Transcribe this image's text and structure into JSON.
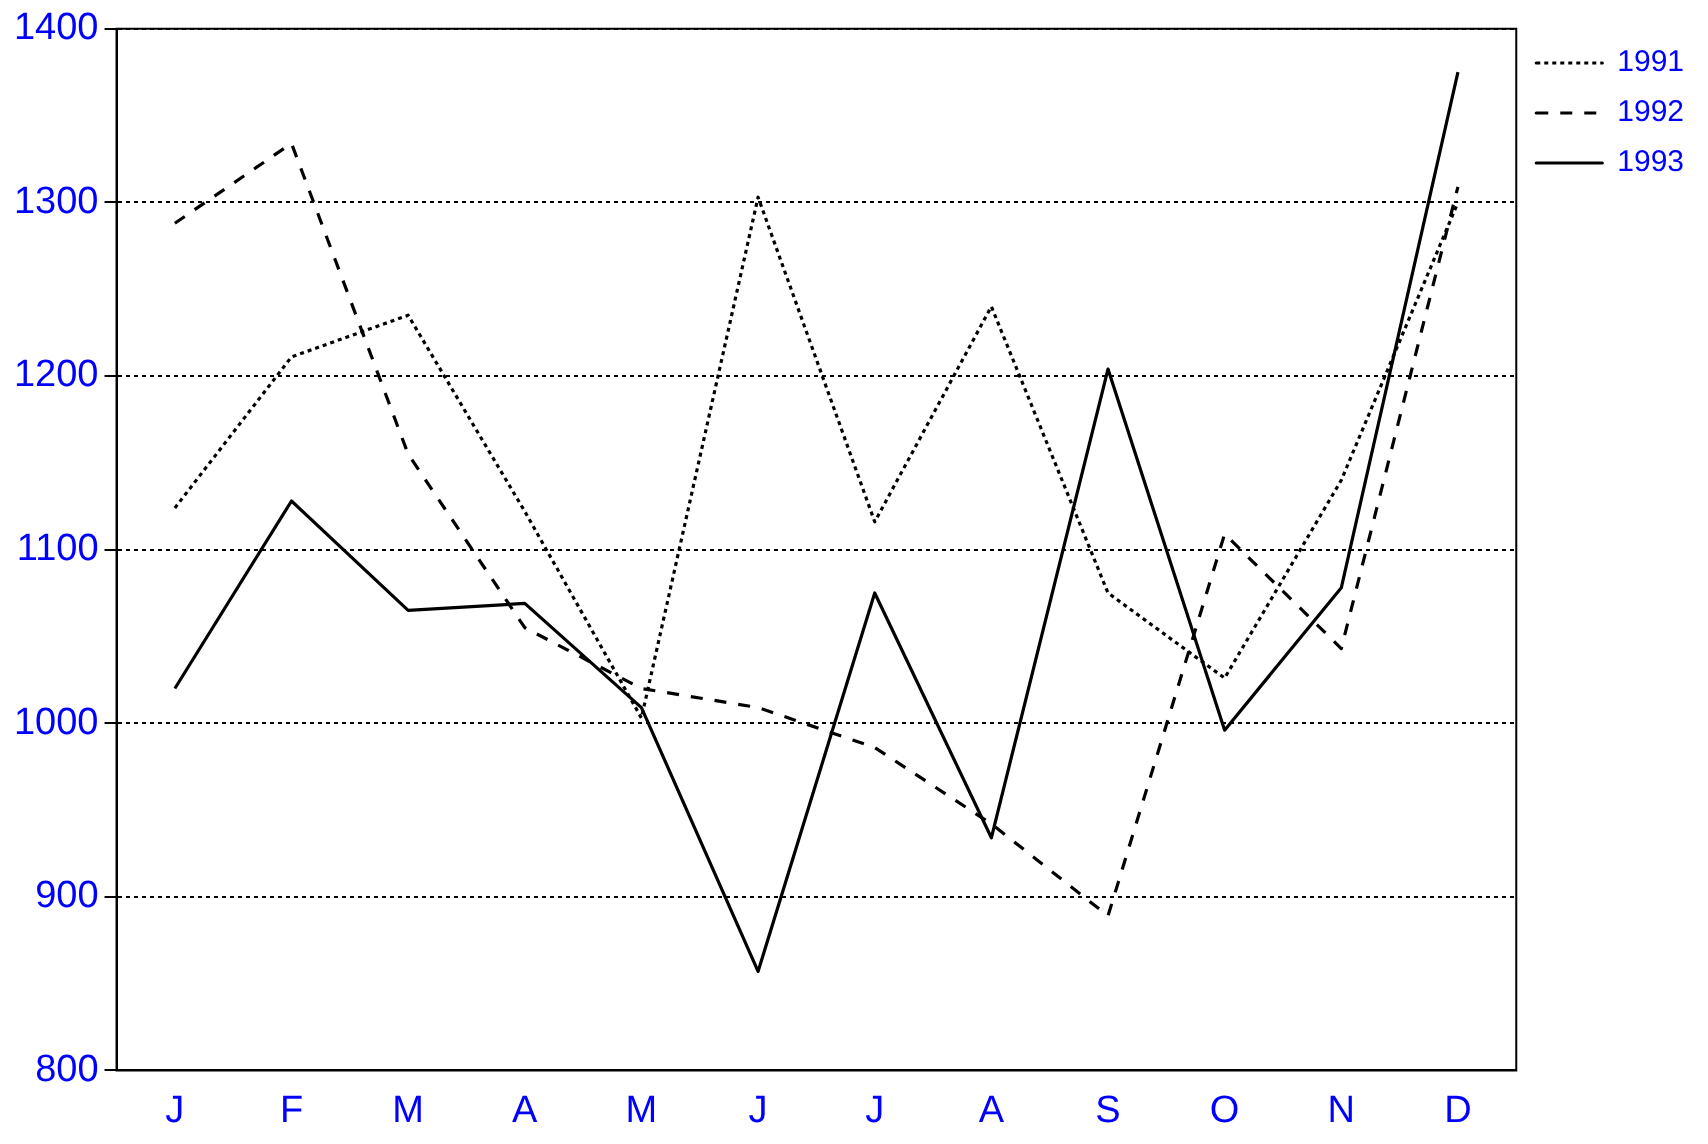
{
  "chart_data": {
    "type": "line",
    "categories": [
      "J",
      "F",
      "M",
      "A",
      "M",
      "J",
      "J",
      "A",
      "S",
      "O",
      "N",
      "D"
    ],
    "series": [
      {
        "name": "1991",
        "color": "#000000",
        "line_style": "dotted",
        "values": [
          1124,
          1211,
          1235,
          1122,
          1003,
          1303,
          1116,
          1240,
          1075,
          1026,
          1140,
          1300
        ]
      },
      {
        "name": "1992",
        "color": "#000000",
        "line_style": "dashed",
        "values": [
          1288,
          1334,
          1155,
          1055,
          1020,
          1009,
          986,
          942,
          889,
          1109,
          1043,
          1309
        ]
      },
      {
        "name": "1993",
        "color": "#000000",
        "line_style": "solid",
        "values": [
          1020,
          1128,
          1065,
          1069,
          1009,
          857,
          1075,
          934,
          1204,
          996,
          1078,
          1375
        ]
      }
    ],
    "ylim": [
      800,
      1400
    ],
    "yticks": [
      800,
      900,
      1000,
      1100,
      1200,
      1300,
      1400
    ],
    "grid": "y",
    "legend": "top right",
    "marker": "none"
  }
}
